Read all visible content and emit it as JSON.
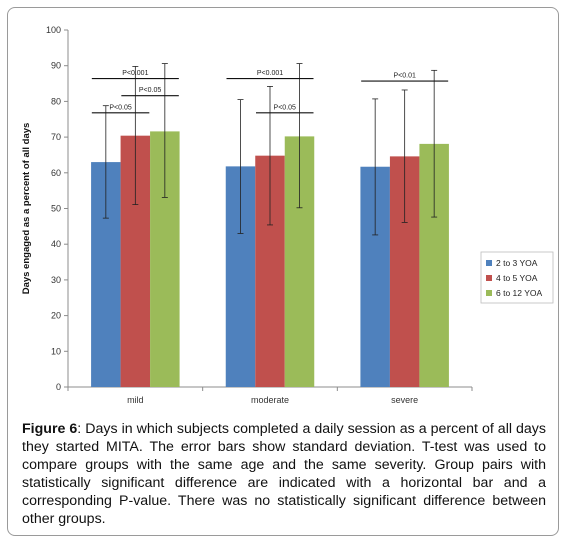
{
  "chart_data": {
    "type": "bar",
    "categories": [
      "mild",
      "moderate",
      "severe"
    ],
    "series": [
      {
        "name": "2 to 3 YOA",
        "color": "#4f81bd",
        "values": [
          63,
          61.8,
          61.7
        ],
        "sd_low": [
          47.3,
          43,
          42.6
        ],
        "sd_high": [
          78.8,
          80.5,
          80.7
        ]
      },
      {
        "name": "4 to 5 YOA",
        "color": "#c0504d",
        "values": [
          70.4,
          64.8,
          64.6
        ],
        "sd_low": [
          51.1,
          45.4,
          46.1
        ],
        "sd_high": [
          89.8,
          84.2,
          83.2
        ]
      },
      {
        "name": "6 to 12 YOA",
        "color": "#9bbb59",
        "values": [
          71.6,
          70.2,
          68.1
        ],
        "sd_low": [
          53.1,
          50.2,
          47.6
        ],
        "sd_high": [
          90.6,
          90.6,
          88.7
        ]
      }
    ],
    "ylabel": "Days engaged as a percent of all days",
    "ylim": [
      0,
      100
    ],
    "yticks": [
      0,
      10,
      20,
      30,
      40,
      50,
      60,
      70,
      80,
      90,
      100
    ],
    "grid": false,
    "legend_position": "right",
    "significance": [
      {
        "category": 0,
        "from_series": 0,
        "to_series": 2,
        "level": 86.4,
        "label": "P<0.001"
      },
      {
        "category": 0,
        "from_series": 1,
        "to_series": 2,
        "level": 81.6,
        "label": "P<0.05"
      },
      {
        "category": 0,
        "from_series": 0,
        "to_series": 1,
        "level": 76.8,
        "label": "P<0.05"
      },
      {
        "category": 1,
        "from_series": 0,
        "to_series": 2,
        "level": 86.4,
        "label": "P<0.001"
      },
      {
        "category": 1,
        "from_series": 1,
        "to_series": 2,
        "level": 76.8,
        "label": "P<0.05"
      },
      {
        "category": 2,
        "from_series": 0,
        "to_series": 2,
        "level": 85.7,
        "label": "P<0.01"
      }
    ]
  },
  "caption": {
    "label": "Figure 6",
    "text": ": Days in which subjects completed a daily session as a percent of all days they started MITA. The error bars show standard deviation. T-test was used to compare groups with the same age and the same severity. Group pairs with statistically significant difference are indicated with a horizontal bar and a corresponding P-value. There was no statistically significant difference between other groups."
  }
}
